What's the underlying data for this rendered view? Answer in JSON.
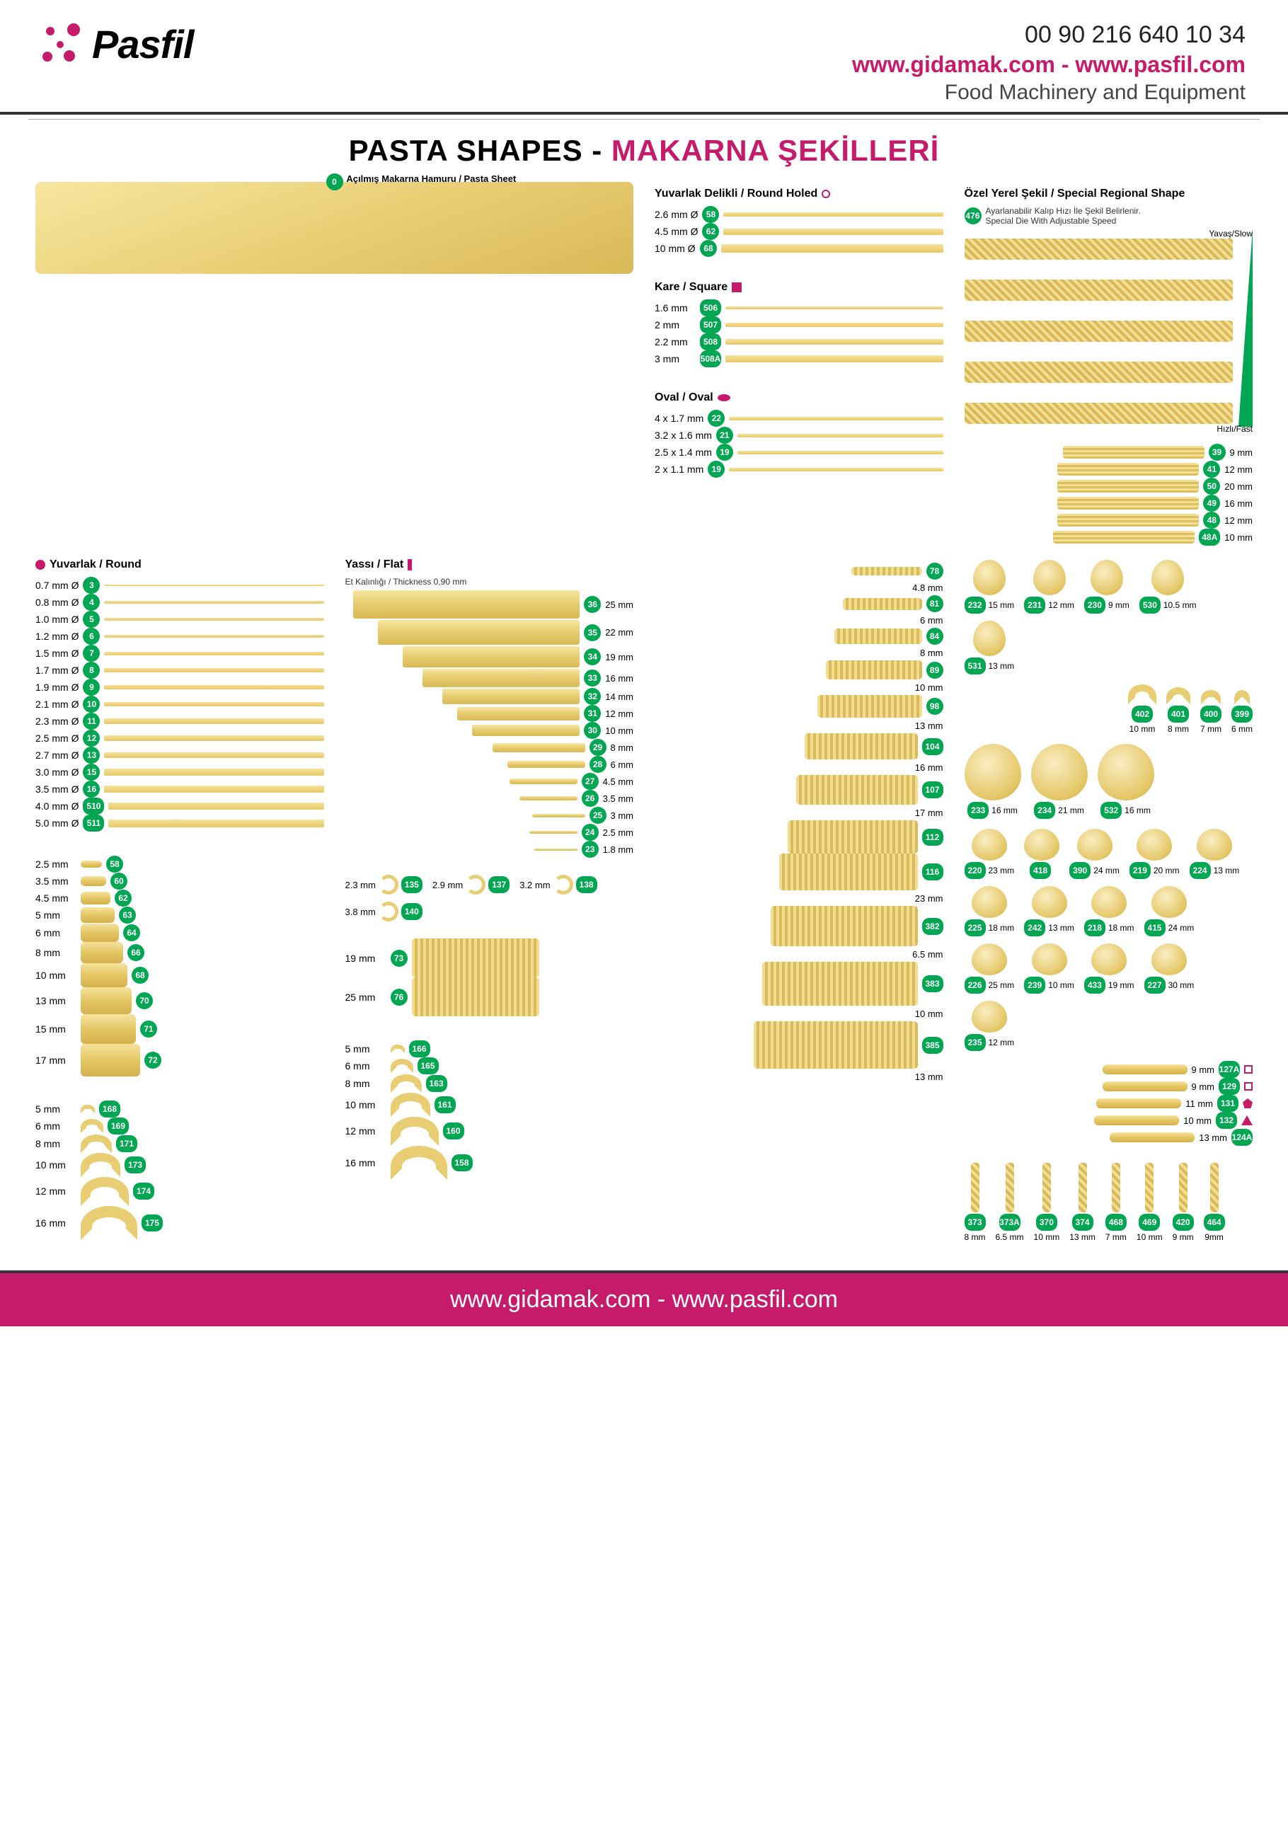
{
  "header": {
    "logo_text": "Pasfil",
    "phone": "00 90 216 640 10 34",
    "urls": "www.gidamak.com - www.pasfil.com",
    "tagline": "Food Machinery and Equipment"
  },
  "title": {
    "en": "PASTA SHAPES - ",
    "tr": "MAKARNA ŞEKİLLERİ"
  },
  "sections": {
    "sheet": {
      "badge": "0",
      "label": "Açılmış Makarna Hamuru / Pasta Sheet"
    },
    "round": {
      "title": "Yuvarlak / Round",
      "items": [
        {
          "size": "0.7 mm Ø",
          "code": "3"
        },
        {
          "size": "0.8 mm Ø",
          "code": "4"
        },
        {
          "size": "1.0 mm Ø",
          "code": "5"
        },
        {
          "size": "1.2 mm Ø",
          "code": "6"
        },
        {
          "size": "1.5 mm Ø",
          "code": "7"
        },
        {
          "size": "1.7 mm Ø",
          "code": "8"
        },
        {
          "size": "1.9 mm Ø",
          "code": "9"
        },
        {
          "size": "2.1 mm Ø",
          "code": "10"
        },
        {
          "size": "2.3 mm Ø",
          "code": "11"
        },
        {
          "size": "2.5 mm Ø",
          "code": "12"
        },
        {
          "size": "2.7 mm Ø",
          "code": "13"
        },
        {
          "size": "3.0 mm Ø",
          "code": "15"
        },
        {
          "size": "3.5 mm Ø",
          "code": "16"
        },
        {
          "size": "4.0 mm Ø",
          "code": "510"
        },
        {
          "size": "5.0 mm Ø",
          "code": "511"
        }
      ]
    },
    "flat": {
      "title": "Yassı / Flat",
      "sub": "Et Kalınlığı / Thickness 0,90 mm",
      "items": [
        {
          "size": "25 mm",
          "code": "36",
          "h": 40
        },
        {
          "size": "22 mm",
          "code": "35",
          "h": 35
        },
        {
          "size": "19 mm",
          "code": "34",
          "h": 30
        },
        {
          "size": "16 mm",
          "code": "33",
          "h": 26
        },
        {
          "size": "14 mm",
          "code": "32",
          "h": 22
        },
        {
          "size": "12 mm",
          "code": "31",
          "h": 19
        },
        {
          "size": "10 mm",
          "code": "30",
          "h": 16
        },
        {
          "size": "8 mm",
          "code": "29",
          "h": 13
        },
        {
          "size": "6 mm",
          "code": "28",
          "h": 10
        },
        {
          "size": "4.5 mm",
          "code": "27",
          "h": 8
        },
        {
          "size": "3.5 mm",
          "code": "26",
          "h": 6
        },
        {
          "size": "3 mm",
          "code": "25",
          "h": 5
        },
        {
          "size": "2.5 mm",
          "code": "24",
          "h": 4
        },
        {
          "size": "1.8 mm",
          "code": "23",
          "h": 3
        }
      ]
    },
    "round_holed": {
      "title": "Yuvarlak Delikli / Round Holed",
      "items": [
        {
          "size": "2.6 mm Ø",
          "code": "58"
        },
        {
          "size": "4.5 mm Ø",
          "code": "62"
        },
        {
          "size": "10 mm Ø",
          "code": "68"
        }
      ]
    },
    "square": {
      "title": "Kare / Square",
      "items": [
        {
          "size": "1.6 mm",
          "code": "506"
        },
        {
          "size": "2 mm",
          "code": "507"
        },
        {
          "size": "2.2 mm",
          "code": "508"
        },
        {
          "size": "3 mm",
          "code": "508A"
        }
      ]
    },
    "oval": {
      "title": "Oval / Oval",
      "items": [
        {
          "size": "4 x 1.7 mm",
          "code": "22"
        },
        {
          "size": "3.2 x 1.6 mm",
          "code": "21"
        },
        {
          "size": "2.5 x 1.4 mm",
          "code": "19"
        },
        {
          "size": "2 x 1.1 mm",
          "code": "19"
        }
      ]
    },
    "special": {
      "title": "Özel Yerel Şekil / Special Regional Shape",
      "sub": "Ayarlanabilir Kalıp Hızı İle Şekil Belirlenir.\nSpecial Die With Adjustable Speed",
      "badge": "476",
      "slow": "Yavaş/Slow",
      "fast": "Hızlı/Fast"
    },
    "ribbed_flat": [
      {
        "size": "9 mm",
        "code": "39"
      },
      {
        "size": "12 mm",
        "code": "41"
      },
      {
        "size": "20 mm",
        "code": "50"
      },
      {
        "size": "16 mm",
        "code": "49"
      },
      {
        "size": "12 mm",
        "code": "48"
      },
      {
        "size": "10 mm",
        "code": "48A"
      }
    ],
    "short_tubes_a": [
      {
        "size": "2.5 mm",
        "code": "58"
      },
      {
        "size": "3.5 mm",
        "code": "60"
      },
      {
        "size": "4.5 mm",
        "code": "62"
      },
      {
        "size": "5 mm",
        "code": "63"
      },
      {
        "size": "6 mm",
        "code": "64"
      },
      {
        "size": "8 mm",
        "code": "66"
      },
      {
        "size": "10 mm",
        "code": "68"
      },
      {
        "size": "13 mm",
        "code": "70"
      },
      {
        "size": "15 mm",
        "code": "71"
      },
      {
        "size": "17 mm",
        "code": "72"
      }
    ],
    "curly_ring": [
      {
        "size": "2.3 mm",
        "code": "135"
      },
      {
        "size": "2.9 mm",
        "code": "137"
      },
      {
        "size": "3.2 mm",
        "code": "138"
      },
      {
        "size": "3.8 mm",
        "code": "140"
      }
    ],
    "wide_tubes": [
      {
        "size": "19 mm",
        "code": "73"
      },
      {
        "size": "25 mm",
        "code": "76"
      }
    ],
    "elbows_a": [
      {
        "size": "5 mm",
        "code": "168"
      },
      {
        "size": "6 mm",
        "code": "169"
      },
      {
        "size": "8 mm",
        "code": "171"
      },
      {
        "size": "10 mm",
        "code": "173"
      },
      {
        "size": "12 mm",
        "code": "174"
      },
      {
        "size": "16 mm",
        "code": "175"
      }
    ],
    "elbows_b": [
      {
        "size": "5 mm",
        "code": "166"
      },
      {
        "size": "6 mm",
        "code": "165"
      },
      {
        "size": "8 mm",
        "code": "163"
      },
      {
        "size": "10 mm",
        "code": "161"
      },
      {
        "size": "12 mm",
        "code": "160"
      },
      {
        "size": "16 mm",
        "code": "158"
      }
    ],
    "rigatoni": [
      {
        "size": "4.8 mm",
        "code": "78"
      },
      {
        "size": "6 mm",
        "code": "81"
      },
      {
        "size": "8 mm",
        "code": "84"
      },
      {
        "size": "10 mm",
        "code": "89"
      },
      {
        "size": "13 mm",
        "code": "98"
      },
      {
        "size": "16 mm",
        "code": "104"
      },
      {
        "size": "17 mm",
        "code": "107"
      },
      {
        "size": "",
        "code": "112"
      },
      {
        "size": "23 mm",
        "code": "116"
      },
      {
        "size": "6.5 mm",
        "code": "382"
      },
      {
        "size": "10 mm",
        "code": "383"
      },
      {
        "size": "13 mm",
        "code": "385"
      }
    ],
    "shells_row": [
      {
        "size": "15 mm",
        "code": "232"
      },
      {
        "size": "12 mm",
        "code": "231"
      },
      {
        "size": "9 mm",
        "code": "230"
      },
      {
        "size": "10.5 mm",
        "code": "530"
      },
      {
        "size": "13 mm",
        "code": "531"
      }
    ],
    "big_shells": [
      {
        "size": "16 mm",
        "code": "233"
      },
      {
        "size": "21 mm",
        "code": "234"
      },
      {
        "size": "16 mm",
        "code": "532"
      }
    ],
    "creste": [
      {
        "size": "10 mm",
        "code": "402"
      },
      {
        "size": "8 mm",
        "code": "401"
      },
      {
        "size": "7 mm",
        "code": "400"
      },
      {
        "size": "6 mm",
        "code": "399"
      }
    ],
    "conchiglie": [
      {
        "size": "23 mm",
        "code": "220"
      },
      {
        "size": "",
        "code": "418"
      },
      {
        "size": "24 mm",
        "code": "390"
      },
      {
        "size": "20 mm",
        "code": "219"
      },
      {
        "size": "13 mm",
        "code": "224"
      },
      {
        "size": "18 mm",
        "code": "225"
      },
      {
        "size": "13 mm",
        "code": "242"
      },
      {
        "size": "18 mm",
        "code": "218"
      },
      {
        "size": "24 mm",
        "code": "415"
      },
      {
        "size": "25 mm",
        "code": "226"
      },
      {
        "size": "10 mm",
        "code": "239"
      },
      {
        "size": "19 mm",
        "code": "433"
      },
      {
        "size": "30 mm",
        "code": "227"
      },
      {
        "size": "12 mm",
        "code": "235"
      }
    ],
    "side_tubes": [
      {
        "size": "9 mm",
        "code": "127A",
        "sym": "sq-open"
      },
      {
        "size": "9 mm",
        "code": "129",
        "sym": "sq-open"
      },
      {
        "size": "11 mm",
        "code": "131",
        "sym": "pent"
      },
      {
        "size": "10 mm",
        "code": "132",
        "sym": "tri"
      },
      {
        "size": "13 mm",
        "code": "124A",
        "sym": ""
      }
    ],
    "twists": [
      {
        "size": "8 mm",
        "code": "373"
      },
      {
        "size": "6.5 mm",
        "code": "373A"
      },
      {
        "size": "10 mm",
        "code": "370"
      },
      {
        "size": "13 mm",
        "code": "374"
      },
      {
        "size": "7 mm",
        "code": "468"
      },
      {
        "size": "10 mm",
        "code": "469"
      },
      {
        "size": "9 mm",
        "code": "420"
      },
      {
        "size": "9mm",
        "code": "464"
      }
    ]
  },
  "colors": {
    "brand": "#c61a6a",
    "badge": "#00a651",
    "pasta_light": "#f7e6a0",
    "pasta_dark": "#d8b955"
  },
  "footer": "www.gidamak.com - www.pasfil.com"
}
